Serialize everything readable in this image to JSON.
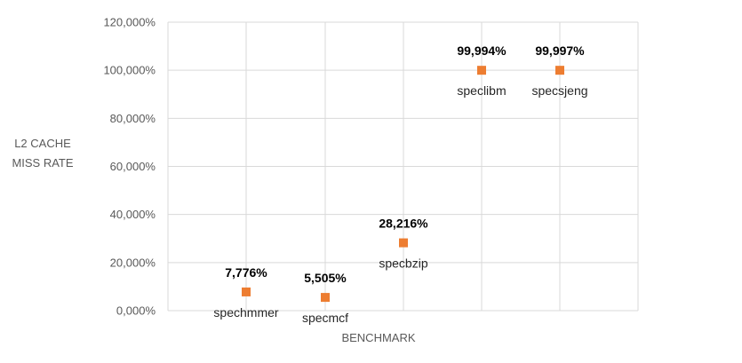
{
  "chart_data": {
    "type": "scatter",
    "title": "",
    "xlabel": "BENCHMARK",
    "ylabel_lines": [
      "L2 CACHE",
      "MISS RATE"
    ],
    "ylim": [
      0,
      120
    ],
    "y_ticks": [
      "0,000%",
      "20,000%",
      "40,000%",
      "60,000%",
      "80,000%",
      "100,000%",
      "120,000%"
    ],
    "x_positions": [
      1,
      2,
      3,
      4,
      5
    ],
    "grid": true,
    "marker_color": "#ED7D31",
    "points": [
      {
        "x": 1,
        "y": 7.776,
        "label": "7,776%",
        "name": "spechmmer"
      },
      {
        "x": 2,
        "y": 5.505,
        "label": "5,505%",
        "name": "specmcf"
      },
      {
        "x": 3,
        "y": 28.216,
        "label": "28,216%",
        "name": "specbzip"
      },
      {
        "x": 4,
        "y": 99.994,
        "label": "99,994%",
        "name": "speclibm"
      },
      {
        "x": 5,
        "y": 99.997,
        "label": "99,997%",
        "name": "specsjeng"
      }
    ]
  }
}
